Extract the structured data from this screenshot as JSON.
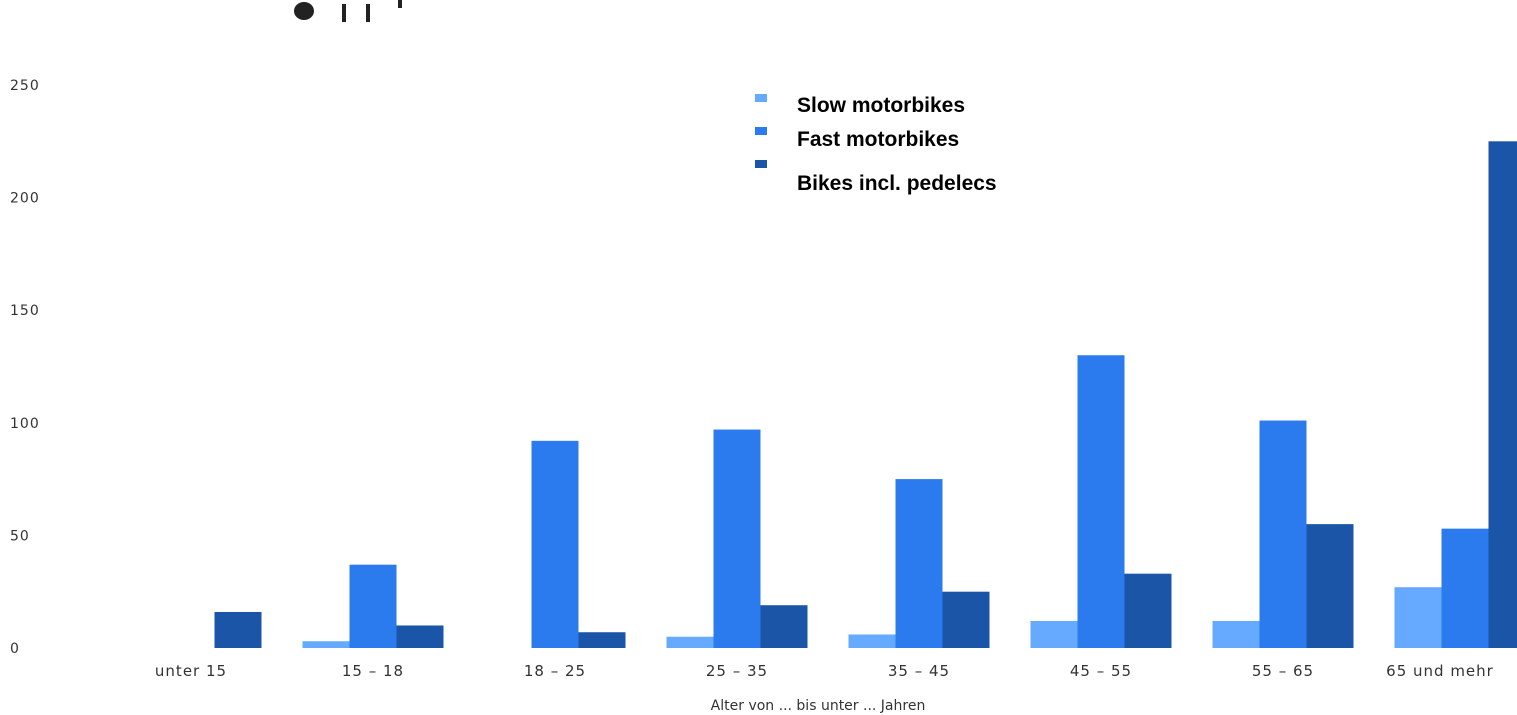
{
  "chart_data": {
    "type": "bar",
    "categories": [
      "unter 15",
      "15 – 18",
      "18 – 25",
      "25 – 35",
      "35 – 45",
      "45 – 55",
      "55 – 65",
      "65 und mehr"
    ],
    "series": [
      {
        "name": "Slow motorbikes",
        "color": "#66aaff",
        "values": [
          0,
          3,
          0,
          5,
          6,
          12,
          12,
          27
        ]
      },
      {
        "name": "Fast motorbikes",
        "color": "#2b7bef",
        "values": [
          0,
          37,
          92,
          97,
          75,
          130,
          101,
          53
        ]
      },
      {
        "name": "Bikes incl. pedelecs",
        "color": "#1b55a8",
        "values": [
          16,
          10,
          7,
          19,
          25,
          33,
          55,
          225
        ]
      }
    ],
    "xlabel": "Alter von ... bis unter ... Jahren",
    "ylabel": "",
    "ylim": [
      0,
      250
    ],
    "yticks": [
      0,
      50,
      100,
      150,
      200,
      250
    ],
    "grid": false,
    "legend_position": "top-right"
  }
}
